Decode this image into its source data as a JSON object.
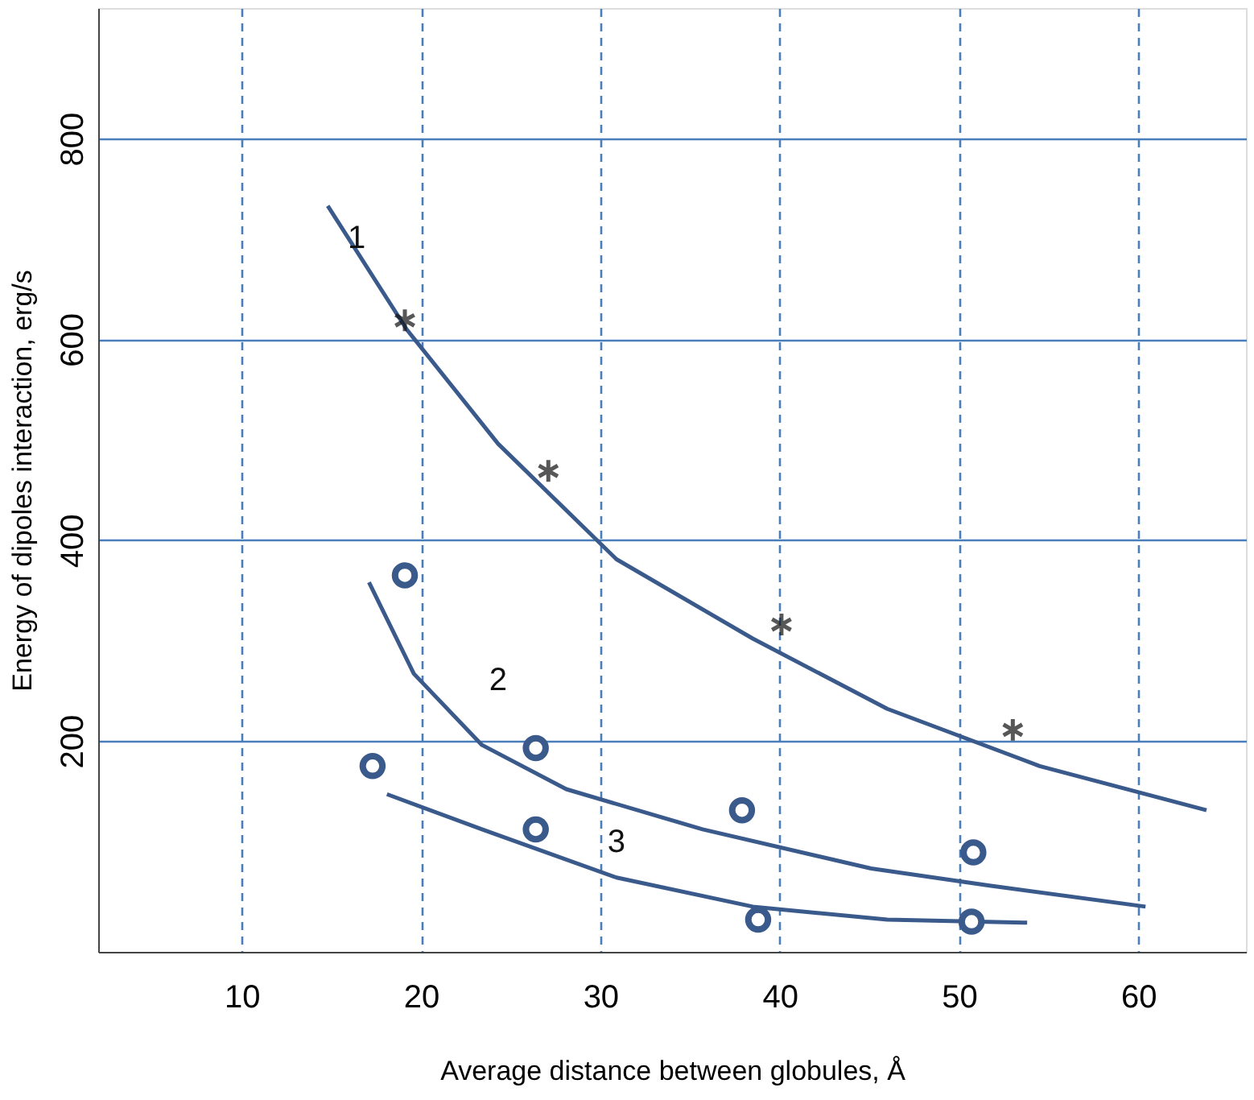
{
  "chart_data": {
    "type": "line",
    "xlabel": "Average distance between globules, Å",
    "ylabel": "Energy of dipoles interaction, erg/s",
    "xlim": [
      2,
      66
    ],
    "xticks": [
      10,
      20,
      30,
      40,
      50,
      60
    ],
    "ylim": [
      -10,
      930
    ],
    "yticks": [
      200,
      400,
      600,
      800
    ],
    "grid": true,
    "series": [
      {
        "name": "1",
        "color": "#3a5a8c",
        "line_style": "solid",
        "x": [
          14.8,
          19.2,
          24.3,
          30.9,
          38.5,
          46,
          54.5,
          63.8
        ],
        "values": [
          733,
          610,
          496,
          381,
          302,
          232,
          175,
          131
        ]
      },
      {
        "type": "scatter",
        "color": "#111111",
        "marker": "cross",
        "x": [
          19.1,
          27.1,
          40.1,
          53
        ],
        "values": [
          619,
          469,
          316,
          211
        ]
      },
      {
        "name": "2",
        "color": "#3a5a8c",
        "line_style": "solid",
        "x": [
          17.1,
          19.6,
          23.4,
          28.1,
          35.7,
          45.1,
          51.7,
          60.4
        ],
        "values": [
          358,
          267,
          196,
          152,
          112,
          73,
          56,
          35
        ]
      },
      {
        "type": "scatter",
        "color": "#3a5a8c",
        "marker": "circle",
        "x": [
          19.1,
          26.4,
          37.9,
          50.8
        ],
        "values": [
          365,
          193,
          131,
          89
        ]
      },
      {
        "name": "3",
        "color": "#3a5a8c",
        "line_style": "solid",
        "x": [
          18.1,
          23.4,
          30.9,
          38.5,
          46,
          53.8
        ],
        "values": [
          147,
          112,
          64,
          35,
          22,
          19
        ]
      },
      {
        "type": "scatter",
        "color": "#3a5a8c",
        "marker": "circle",
        "x": [
          17.3,
          26.4,
          38.8,
          50.7
        ],
        "values": [
          175,
          112,
          22,
          20
        ]
      }
    ]
  }
}
